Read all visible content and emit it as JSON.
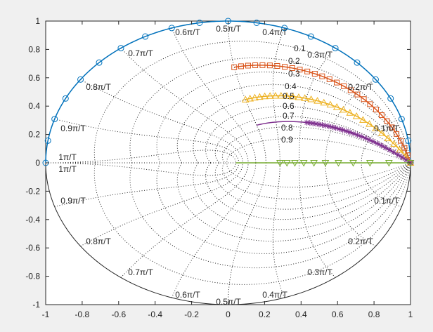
{
  "chart_data": {
    "type": "line",
    "title": "",
    "xlabel": "",
    "ylabel": "",
    "xlim": [
      -1,
      1
    ],
    "ylim": [
      -1,
      1
    ],
    "x_ticks": [
      "-1",
      "-0.8",
      "-0.6",
      "-0.4",
      "-0.2",
      "0",
      "0.2",
      "0.4",
      "0.6",
      "0.8",
      "1"
    ],
    "y_ticks": [
      "1",
      "0.8",
      "0.6",
      "0.4",
      "0.2",
      "0",
      "-0.2",
      "-0.4",
      "-0.6",
      "-0.8",
      "-1"
    ],
    "grid": "zgrid",
    "zeta_labels": [
      "0.1",
      "0.2",
      "0.3",
      "0.4",
      "0.5",
      "0.6",
      "0.7",
      "0.8",
      "0.9"
    ],
    "wn_labels_upper": [
      "0.1π/T",
      "0.2π/T",
      "0.3π/T",
      "0.4π/T",
      "0.5π/T",
      "0.6π/T",
      "0.7π/T",
      "0.8π/T",
      "0.9π/T",
      "1π/T"
    ],
    "wn_labels_lower": [
      "0.1π/T",
      "0.2π/T",
      "0.3π/T",
      "0.4π/T",
      "0.5π/T",
      "0.6π/T",
      "0.7π/T",
      "0.8π/T",
      "0.9π/T",
      "1π/T"
    ],
    "series": [
      {
        "color": "#0072BD",
        "marker": "circle",
        "zeta": 0,
        "line": [
          0.0,
          1.0
        ],
        "markers": [
          0.0,
          1.0
        ]
      },
      {
        "color": "#D95319",
        "marker": "square",
        "zeta": 0.25,
        "line": [
          0.0,
          0.5
        ],
        "markers": [
          0.0,
          0.5
        ]
      },
      {
        "color": "#EDB120",
        "marker": "triangle-up",
        "zeta": 0.5,
        "line": [
          0.0,
          0.5
        ],
        "markers": [
          0.0,
          0.5
        ]
      },
      {
        "color": "#7E2F8E",
        "marker": "asterisk",
        "zeta": 0.75,
        "line": [
          0.0,
          0.5
        ],
        "markers": [
          0.0,
          0.28
        ]
      },
      {
        "color": "#77AC30",
        "marker": "triangle-down",
        "zeta": 1.0,
        "line": [
          0.0,
          1.0
        ],
        "markers": [
          0.0,
          0.4
        ]
      }
    ]
  }
}
